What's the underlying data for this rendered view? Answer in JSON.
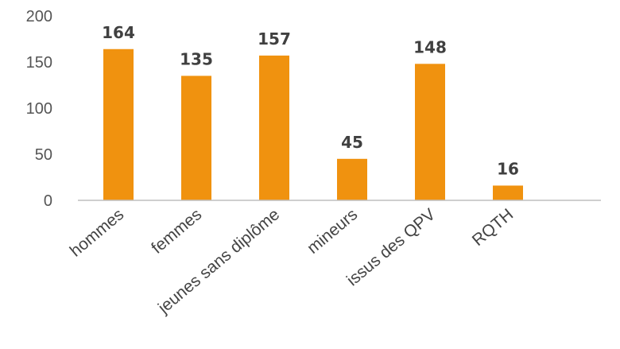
{
  "chart_data": {
    "type": "bar",
    "categories": [
      "hommes",
      "femmes",
      "jeunes sans diplôme",
      "mineurs",
      "issus des QPV",
      "RQTH"
    ],
    "values": [
      164,
      135,
      157,
      45,
      148,
      16
    ],
    "data_labels": [
      "164",
      "135",
      "157",
      "45",
      "148",
      "16"
    ],
    "yticks": [
      "0",
      "50",
      "100",
      "150",
      "200"
    ],
    "ylim": [
      0,
      200
    ],
    "title": "",
    "xlabel": "",
    "ylabel": "",
    "grid": false,
    "legend": "none",
    "bar_color": "#f0920f"
  }
}
